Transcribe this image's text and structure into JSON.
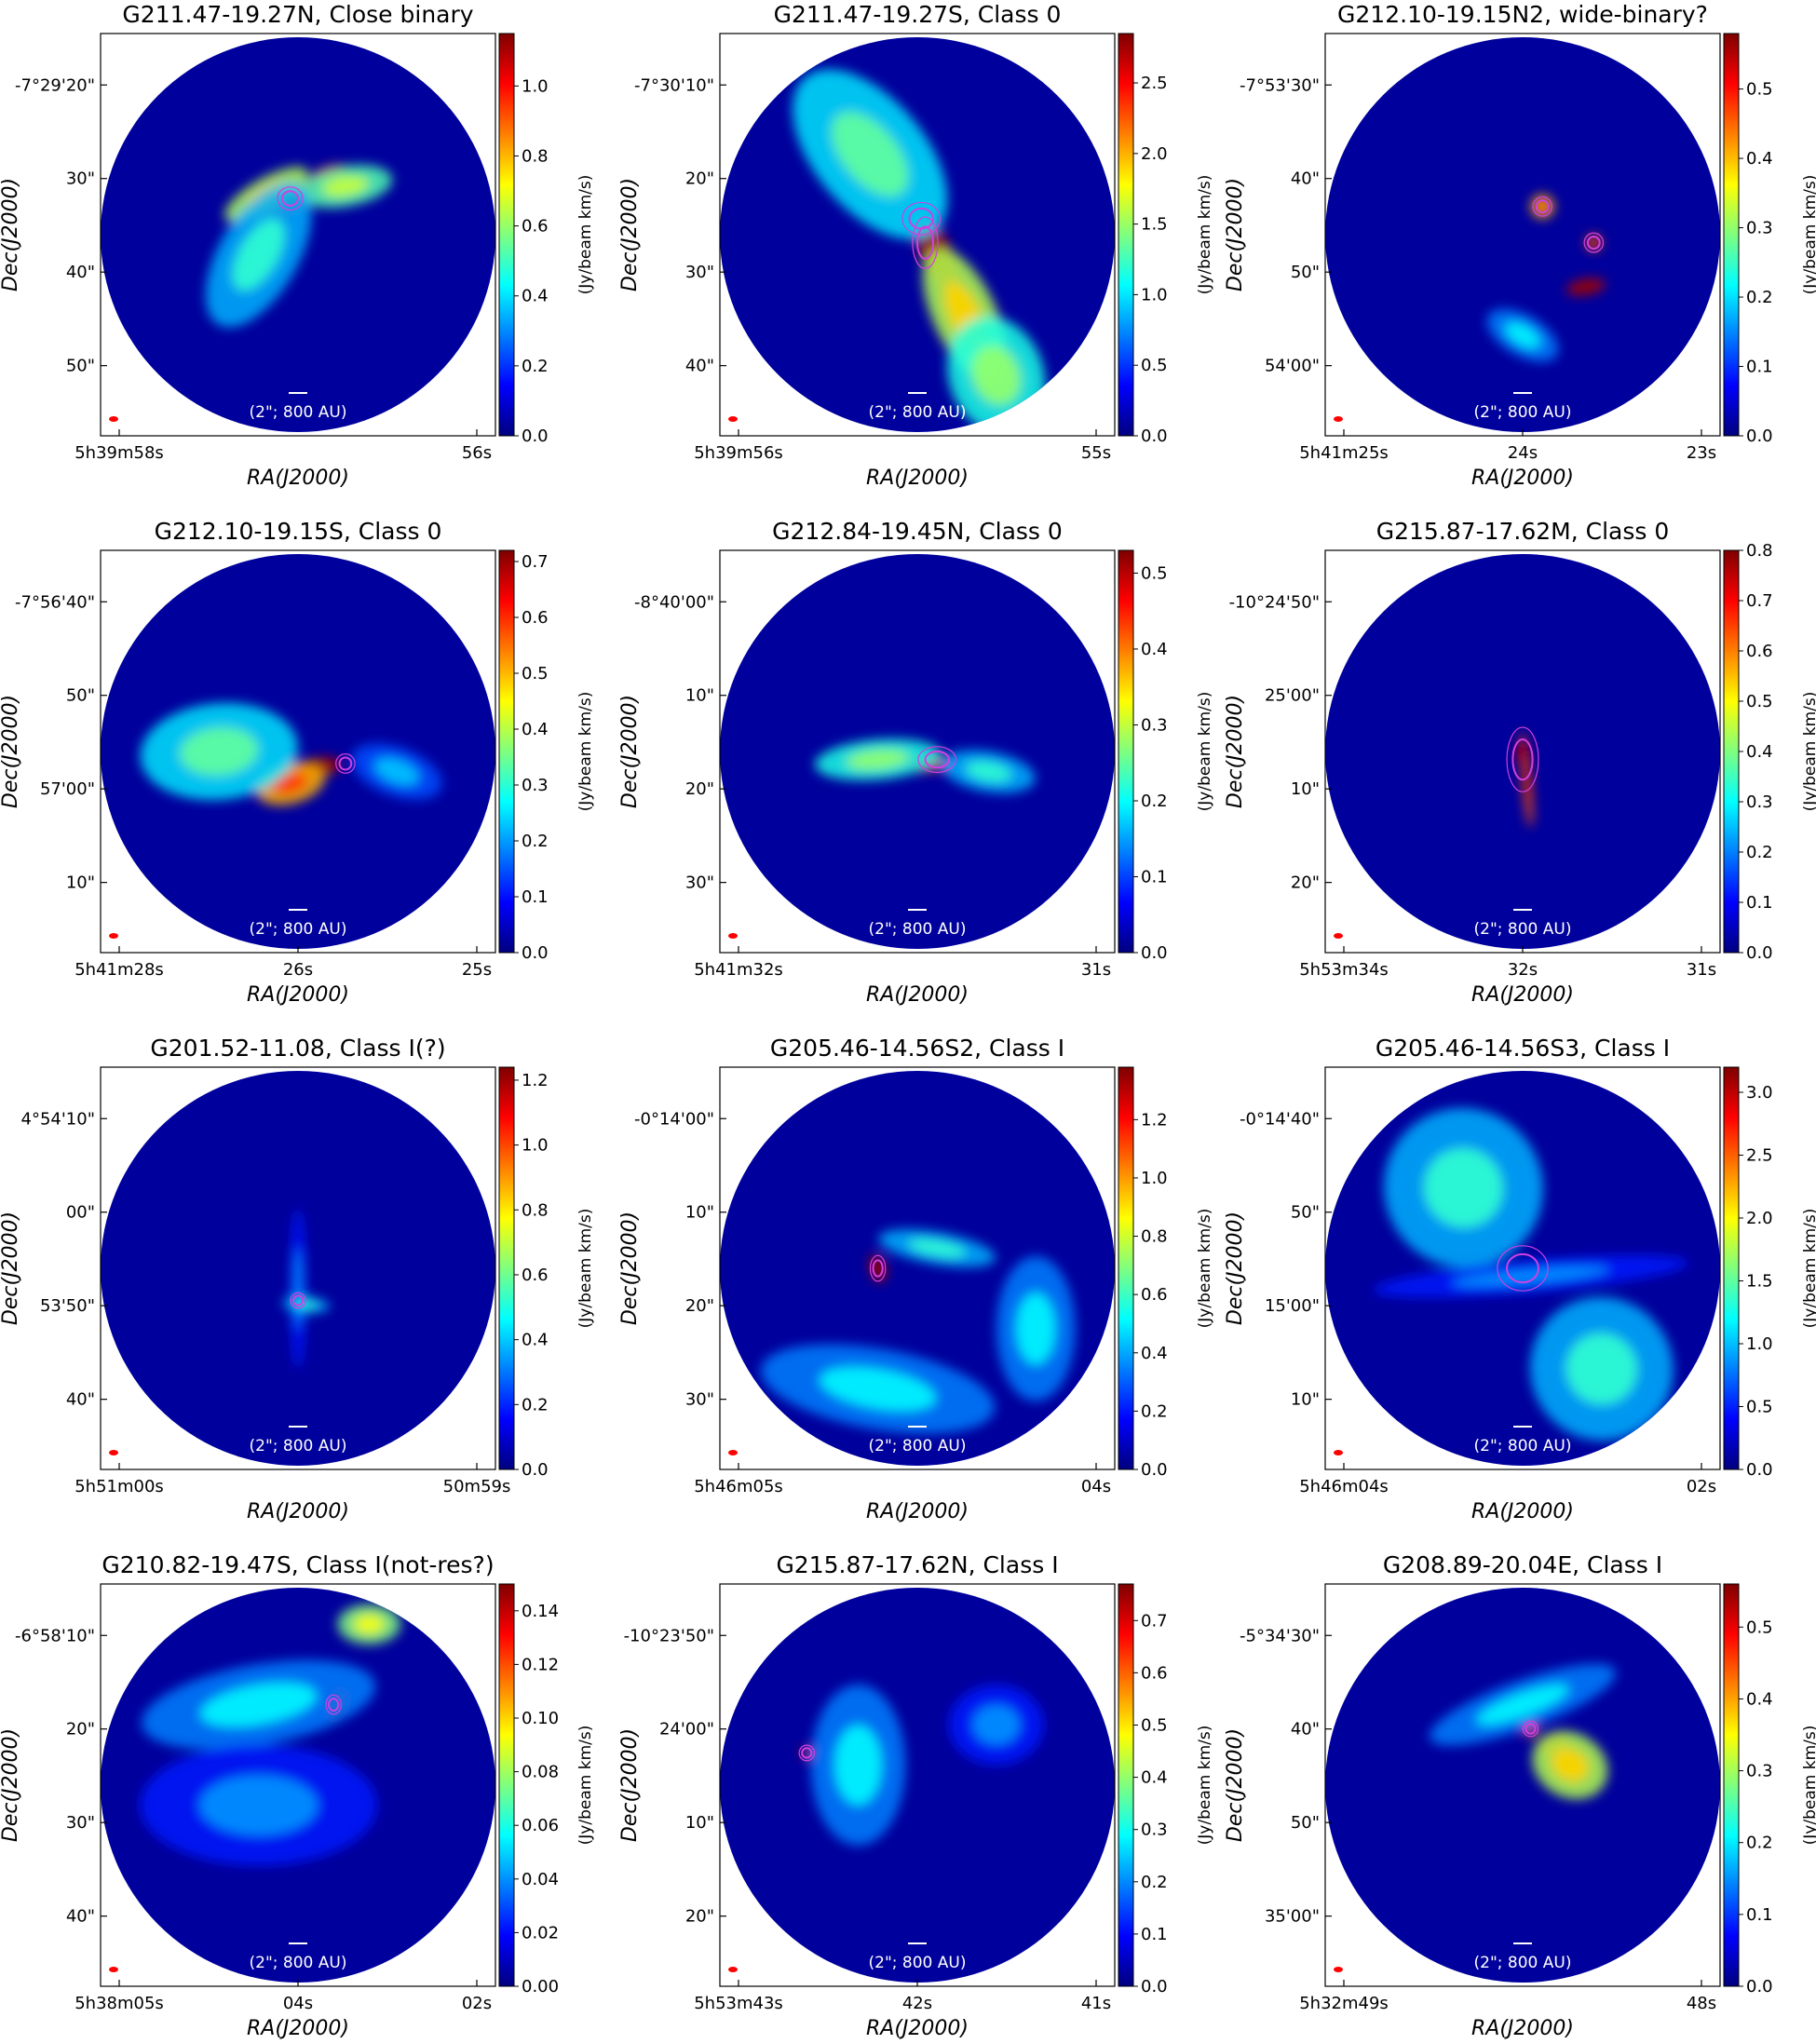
{
  "colormap_stops": [
    "#00007f",
    "#0000ff",
    "#007fff",
    "#00ffff",
    "#7fff7f",
    "#ffff00",
    "#ff7f00",
    "#ff0000",
    "#7f0000"
  ],
  "disk_color": "#00009c",
  "beam_color": "#ff0000",
  "contour_color": "#d040e0",
  "axis_xlabel": "RA(J2000)",
  "axis_ylabel": "Dec(J2000)",
  "colorbar_label": "(Jy/beam km/s)",
  "scale_label": "(2\"; 800 AU)",
  "panels": [
    {
      "title": "G211.47-19.27N, Close binary",
      "dec_ticks": [
        "-7°29'20\"",
        "30\"",
        "40\"",
        "50\""
      ],
      "ra_ticks": [
        "5h39m58s",
        "56s"
      ],
      "cbar_ticks": [
        "0.0",
        "0.2",
        "0.4",
        "0.6",
        "0.8",
        "1.0"
      ],
      "cbar_max": 1.15,
      "blobs": [
        [
          0.48,
          0.41,
          0.07,
          0.03,
          -20,
          0.9
        ],
        [
          0.58,
          0.35,
          0.05,
          0.02,
          -15,
          0.8
        ],
        [
          0.42,
          0.4,
          0.12,
          0.04,
          -30,
          0.55
        ],
        [
          0.62,
          0.38,
          0.12,
          0.05,
          -10,
          0.45
        ],
        [
          0.4,
          0.55,
          0.1,
          0.2,
          30,
          0.3
        ]
      ],
      "contours": [
        [
          0.48,
          0.41,
          0.02,
          0.018
        ]
      ]
    },
    {
      "title": "G211.47-19.27S, Class 0",
      "dec_ticks": [
        "-7°30'10\"",
        "20\"",
        "30\"",
        "40\""
      ],
      "ra_ticks": [
        "5h39m56s",
        "55s"
      ],
      "cbar_ticks": [
        "0.0",
        "0.5",
        "1.0",
        "1.5",
        "2.0",
        "2.5"
      ],
      "cbar_max": 2.85,
      "blobs": [
        [
          0.55,
          0.55,
          0.04,
          0.1,
          -25,
          0.95
        ],
        [
          0.62,
          0.7,
          0.08,
          0.18,
          -25,
          0.55
        ],
        [
          0.38,
          0.3,
          0.14,
          0.25,
          -40,
          0.35
        ],
        [
          0.7,
          0.85,
          0.12,
          0.15,
          -20,
          0.4
        ]
      ],
      "contours": [
        [
          0.51,
          0.46,
          0.03,
          0.025
        ],
        [
          0.52,
          0.52,
          0.02,
          0.04
        ]
      ]
    },
    {
      "title": "G212.10-19.15N2, wide-binary?",
      "dec_ticks": [
        "-7°53'30\"",
        "40\"",
        "50\"",
        "54'00\""
      ],
      "ra_ticks": [
        "5h41m25s",
        "24s",
        "23s"
      ],
      "cbar_ticks": [
        "0.0",
        "0.1",
        "0.2",
        "0.3",
        "0.4",
        "0.5"
      ],
      "cbar_max": 0.58,
      "blobs": [
        [
          0.66,
          0.63,
          0.05,
          0.02,
          -10,
          0.95
        ],
        [
          0.55,
          0.43,
          0.03,
          0.03,
          0,
          0.7
        ],
        [
          0.68,
          0.52,
          0.02,
          0.02,
          0,
          0.8
        ],
        [
          0.5,
          0.75,
          0.1,
          0.05,
          30,
          0.25
        ]
      ],
      "contours": [
        [
          0.55,
          0.43,
          0.015,
          0.015
        ],
        [
          0.68,
          0.52,
          0.015,
          0.015
        ]
      ]
    },
    {
      "title": "G212.10-19.15S, Class 0",
      "dec_ticks": [
        "-7°56'40\"",
        "50\"",
        "57'00\"",
        "10\""
      ],
      "ra_ticks": [
        "5h41m28s",
        "26s",
        "25s"
      ],
      "cbar_ticks": [
        "0.0",
        "0.1",
        "0.2",
        "0.3",
        "0.4",
        "0.5",
        "0.6",
        "0.7"
      ],
      "cbar_max": 0.72,
      "blobs": [
        [
          0.55,
          0.54,
          0.06,
          0.025,
          -10,
          0.95
        ],
        [
          0.48,
          0.58,
          0.09,
          0.05,
          -15,
          0.7
        ],
        [
          0.3,
          0.5,
          0.2,
          0.12,
          -5,
          0.35
        ],
        [
          0.75,
          0.55,
          0.12,
          0.06,
          20,
          0.2
        ]
      ],
      "contours": [
        [
          0.62,
          0.53,
          0.015,
          0.015
        ]
      ]
    },
    {
      "title": "G212.84-19.45N, Class 0",
      "dec_ticks": [
        "-8°40'00\"",
        "10\"",
        "20\"",
        "30\""
      ],
      "ra_ticks": [
        "5h41m32s",
        "31s"
      ],
      "cbar_ticks": [
        "0.0",
        "0.1",
        "0.2",
        "0.3",
        "0.4",
        "0.5"
      ],
      "cbar_max": 0.53,
      "blobs": [
        [
          0.53,
          0.53,
          0.05,
          0.02,
          -5,
          0.9
        ],
        [
          0.4,
          0.52,
          0.16,
          0.05,
          -5,
          0.4
        ],
        [
          0.68,
          0.55,
          0.12,
          0.05,
          10,
          0.3
        ]
      ],
      "contours": [
        [
          0.55,
          0.52,
          0.03,
          0.02
        ]
      ]
    },
    {
      "title": "G215.87-17.62M, Class 0",
      "dec_ticks": [
        "-10°24'50\"",
        "25'00\"",
        "10\"",
        "20\""
      ],
      "ra_ticks": [
        "5h53m34s",
        "32s",
        "31s"
      ],
      "cbar_ticks": [
        "0.0",
        "0.1",
        "0.2",
        "0.3",
        "0.4",
        "0.5",
        "0.6",
        "0.7",
        "0.8"
      ],
      "cbar_max": 0.8,
      "blobs": [
        [
          0.51,
          0.57,
          0.012,
          0.12,
          -5,
          0.8
        ],
        [
          0.5,
          0.5,
          0.015,
          0.03,
          0,
          0.9
        ]
      ],
      "contours": [
        [
          0.5,
          0.52,
          0.025,
          0.05
        ]
      ]
    },
    {
      "title": "G201.52-11.08, Class I(?)",
      "dec_ticks": [
        "4°54'10\"",
        "00\"",
        "53'50\"",
        "40\""
      ],
      "ra_ticks": [
        "5h51m00s",
        "50m59s"
      ],
      "cbar_ticks": [
        "0.0",
        "0.2",
        "0.4",
        "0.6",
        "0.8",
        "1.0",
        "1.2"
      ],
      "cbar_max": 1.24,
      "blobs": [
        [
          0.5,
          0.58,
          0.02,
          0.018,
          0,
          0.9
        ],
        [
          0.5,
          0.55,
          0.02,
          0.2,
          0,
          0.15
        ],
        [
          0.52,
          0.59,
          0.06,
          0.02,
          5,
          0.3
        ]
      ],
      "contours": [
        [
          0.5,
          0.58,
          0.012,
          0.012
        ]
      ]
    },
    {
      "title": "G205.46-14.56S2, Class I",
      "dec_ticks": [
        "-0°14'00\"",
        "10\"",
        "20\"",
        "30\""
      ],
      "ra_ticks": [
        "5h46m05s",
        "04s"
      ],
      "cbar_ticks": [
        "0.0",
        "0.2",
        "0.4",
        "0.6",
        "0.8",
        "1.0",
        "1.2"
      ],
      "cbar_max": 1.38,
      "blobs": [
        [
          0.4,
          0.5,
          0.02,
          0.035,
          -15,
          0.95
        ],
        [
          0.55,
          0.45,
          0.15,
          0.04,
          10,
          0.3
        ],
        [
          0.4,
          0.8,
          0.3,
          0.1,
          10,
          0.25
        ],
        [
          0.8,
          0.65,
          0.1,
          0.18,
          0,
          0.25
        ]
      ],
      "contours": [
        [
          0.4,
          0.5,
          0.012,
          0.02
        ]
      ]
    },
    {
      "title": "G205.46-14.56S3, Class I",
      "dec_ticks": [
        "-0°14'40\"",
        "50\"",
        "15'00\"",
        "10\""
      ],
      "ra_ticks": [
        "5h46m04s",
        "02s"
      ],
      "cbar_ticks": [
        "0.0",
        "0.5",
        "1.0",
        "1.5",
        "2.0",
        "2.5",
        "3.0"
      ],
      "cbar_max": 3.2,
      "blobs": [
        [
          0.52,
          0.52,
          0.03,
          0.02,
          0,
          0.9
        ],
        [
          0.35,
          0.3,
          0.2,
          0.2,
          -40,
          0.3
        ],
        [
          0.7,
          0.75,
          0.18,
          0.18,
          -40,
          0.3
        ],
        [
          0.52,
          0.52,
          0.4,
          0.04,
          -5,
          0.15
        ]
      ],
      "contours": [
        [
          0.5,
          0.5,
          0.04,
          0.035
        ]
      ]
    },
    {
      "title": "G210.82-19.47S, Class I(not-res?)",
      "dec_ticks": [
        "-6°58'10\"",
        "20\"",
        "30\"",
        "40\""
      ],
      "ra_ticks": [
        "5h38m05s",
        "04s",
        "02s"
      ],
      "cbar_ticks": [
        "0.00",
        "0.02",
        "0.04",
        "0.06",
        "0.08",
        "0.10",
        "0.12",
        "0.14"
      ],
      "cbar_max": 0.15,
      "blobs": [
        [
          0.6,
          0.3,
          0.02,
          0.04,
          20,
          0.9
        ],
        [
          0.68,
          0.1,
          0.08,
          0.05,
          0,
          0.5
        ],
        [
          0.4,
          0.3,
          0.3,
          0.1,
          -10,
          0.25
        ],
        [
          0.4,
          0.55,
          0.3,
          0.15,
          0,
          0.15
        ]
      ],
      "contours": [
        [
          0.59,
          0.3,
          0.012,
          0.015
        ]
      ]
    },
    {
      "title": "G215.87-17.62N, Class I",
      "dec_ticks": [
        "-10°23'50\"",
        "24'00\"",
        "10\"",
        "20\""
      ],
      "ra_ticks": [
        "5h53m43s",
        "42s",
        "41s"
      ],
      "cbar_ticks": [
        "0.0",
        "0.1",
        "0.2",
        "0.3",
        "0.4",
        "0.5",
        "0.6",
        "0.7"
      ],
      "cbar_max": 0.77,
      "blobs": [
        [
          0.22,
          0.42,
          0.015,
          0.015,
          0,
          0.95
        ],
        [
          0.35,
          0.45,
          0.12,
          0.2,
          0,
          0.25
        ],
        [
          0.7,
          0.35,
          0.12,
          0.1,
          0,
          0.15
        ]
      ],
      "contours": [
        [
          0.22,
          0.42,
          0.012,
          0.012
        ]
      ]
    },
    {
      "title": "G208.89-20.04E, Class I",
      "dec_ticks": [
        "-5°34'30\"",
        "40\"",
        "50\"",
        "35'00\""
      ],
      "ra_ticks": [
        "5h32m49s",
        "48s"
      ],
      "cbar_ticks": [
        "0.0",
        "0.1",
        "0.2",
        "0.3",
        "0.4",
        "0.5"
      ],
      "cbar_max": 0.56,
      "blobs": [
        [
          0.58,
          0.4,
          0.04,
          0.025,
          -20,
          0.9
        ],
        [
          0.52,
          0.36,
          0.02,
          0.02,
          0,
          0.8
        ],
        [
          0.62,
          0.45,
          0.1,
          0.08,
          30,
          0.55
        ],
        [
          0.5,
          0.3,
          0.25,
          0.06,
          -20,
          0.25
        ]
      ],
      "contours": [
        [
          0.52,
          0.36,
          0.012,
          0.012
        ]
      ]
    }
  ]
}
